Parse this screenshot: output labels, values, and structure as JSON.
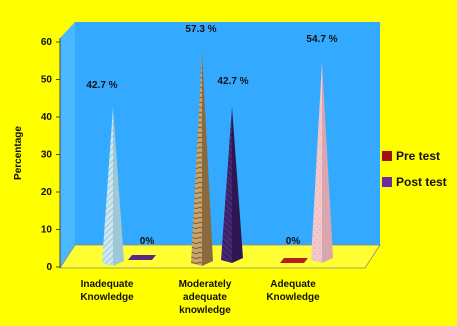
{
  "chart_data": {
    "type": "bar",
    "style": "3d-cone",
    "title": "",
    "xlabel": "",
    "ylabel": "Percentage",
    "ylim": [
      0,
      60
    ],
    "yticks": [
      0,
      10,
      20,
      30,
      40,
      50,
      60
    ],
    "grid": false,
    "legend_position": "right",
    "categories": [
      [
        "Inadequate",
        "Knowledge"
      ],
      [
        "Moderately",
        "adequate",
        "knowledge"
      ],
      [
        "Adequate",
        "Knowledge"
      ]
    ],
    "series": [
      {
        "name": "Pre test",
        "values": [
          42.7,
          57.3,
          0
        ],
        "labels": [
          "42.7 %",
          "57.3 %",
          "0%"
        ]
      },
      {
        "name": "Post test",
        "values": [
          0,
          42.7,
          54.7
        ],
        "labels": [
          "0%",
          "42.7 %",
          "54.7 %"
        ]
      }
    ]
  },
  "colors": {
    "background": "#ffff00",
    "plot_area": "#33aaff",
    "floor": "#ffff33",
    "legend_pre": "#a01010",
    "legend_post": "#6a2aa0",
    "cone_0_0": "#cde8f2",
    "cone_0_1": "#5a2a82",
    "cone_1_0": "#c8a46e",
    "cone_1_1": "#4a2878",
    "cone_2_0": "#b81c1c",
    "cone_2_1": "#f2c8cc"
  }
}
